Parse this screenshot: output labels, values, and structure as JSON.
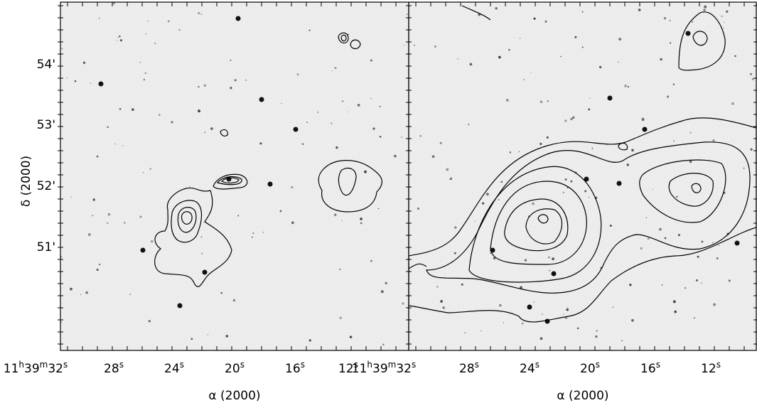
{
  "y_axis_title": "δ (2000)",
  "y_tick_labels": [
    "54'",
    "53'",
    "52'",
    "51'"
  ],
  "panels": [
    {
      "x_axis_title": "α (2000)",
      "x_tick_labels": [
        [
          "11",
          "h",
          "39",
          "m",
          "32",
          "s"
        ],
        [
          "28",
          "s"
        ],
        [
          "24",
          "s"
        ],
        [
          "20",
          "s"
        ],
        [
          "16",
          "s"
        ],
        [
          "12",
          "s"
        ]
      ]
    },
    {
      "x_axis_title": "α (2000)",
      "x_tick_labels": [
        [
          "11",
          "h",
          "39",
          "m",
          "32",
          "s"
        ],
        [
          "28",
          "s"
        ],
        [
          "24",
          "s"
        ],
        [
          "20",
          "s"
        ],
        [
          "16",
          "s"
        ],
        [
          "12",
          "s"
        ]
      ]
    }
  ]
}
